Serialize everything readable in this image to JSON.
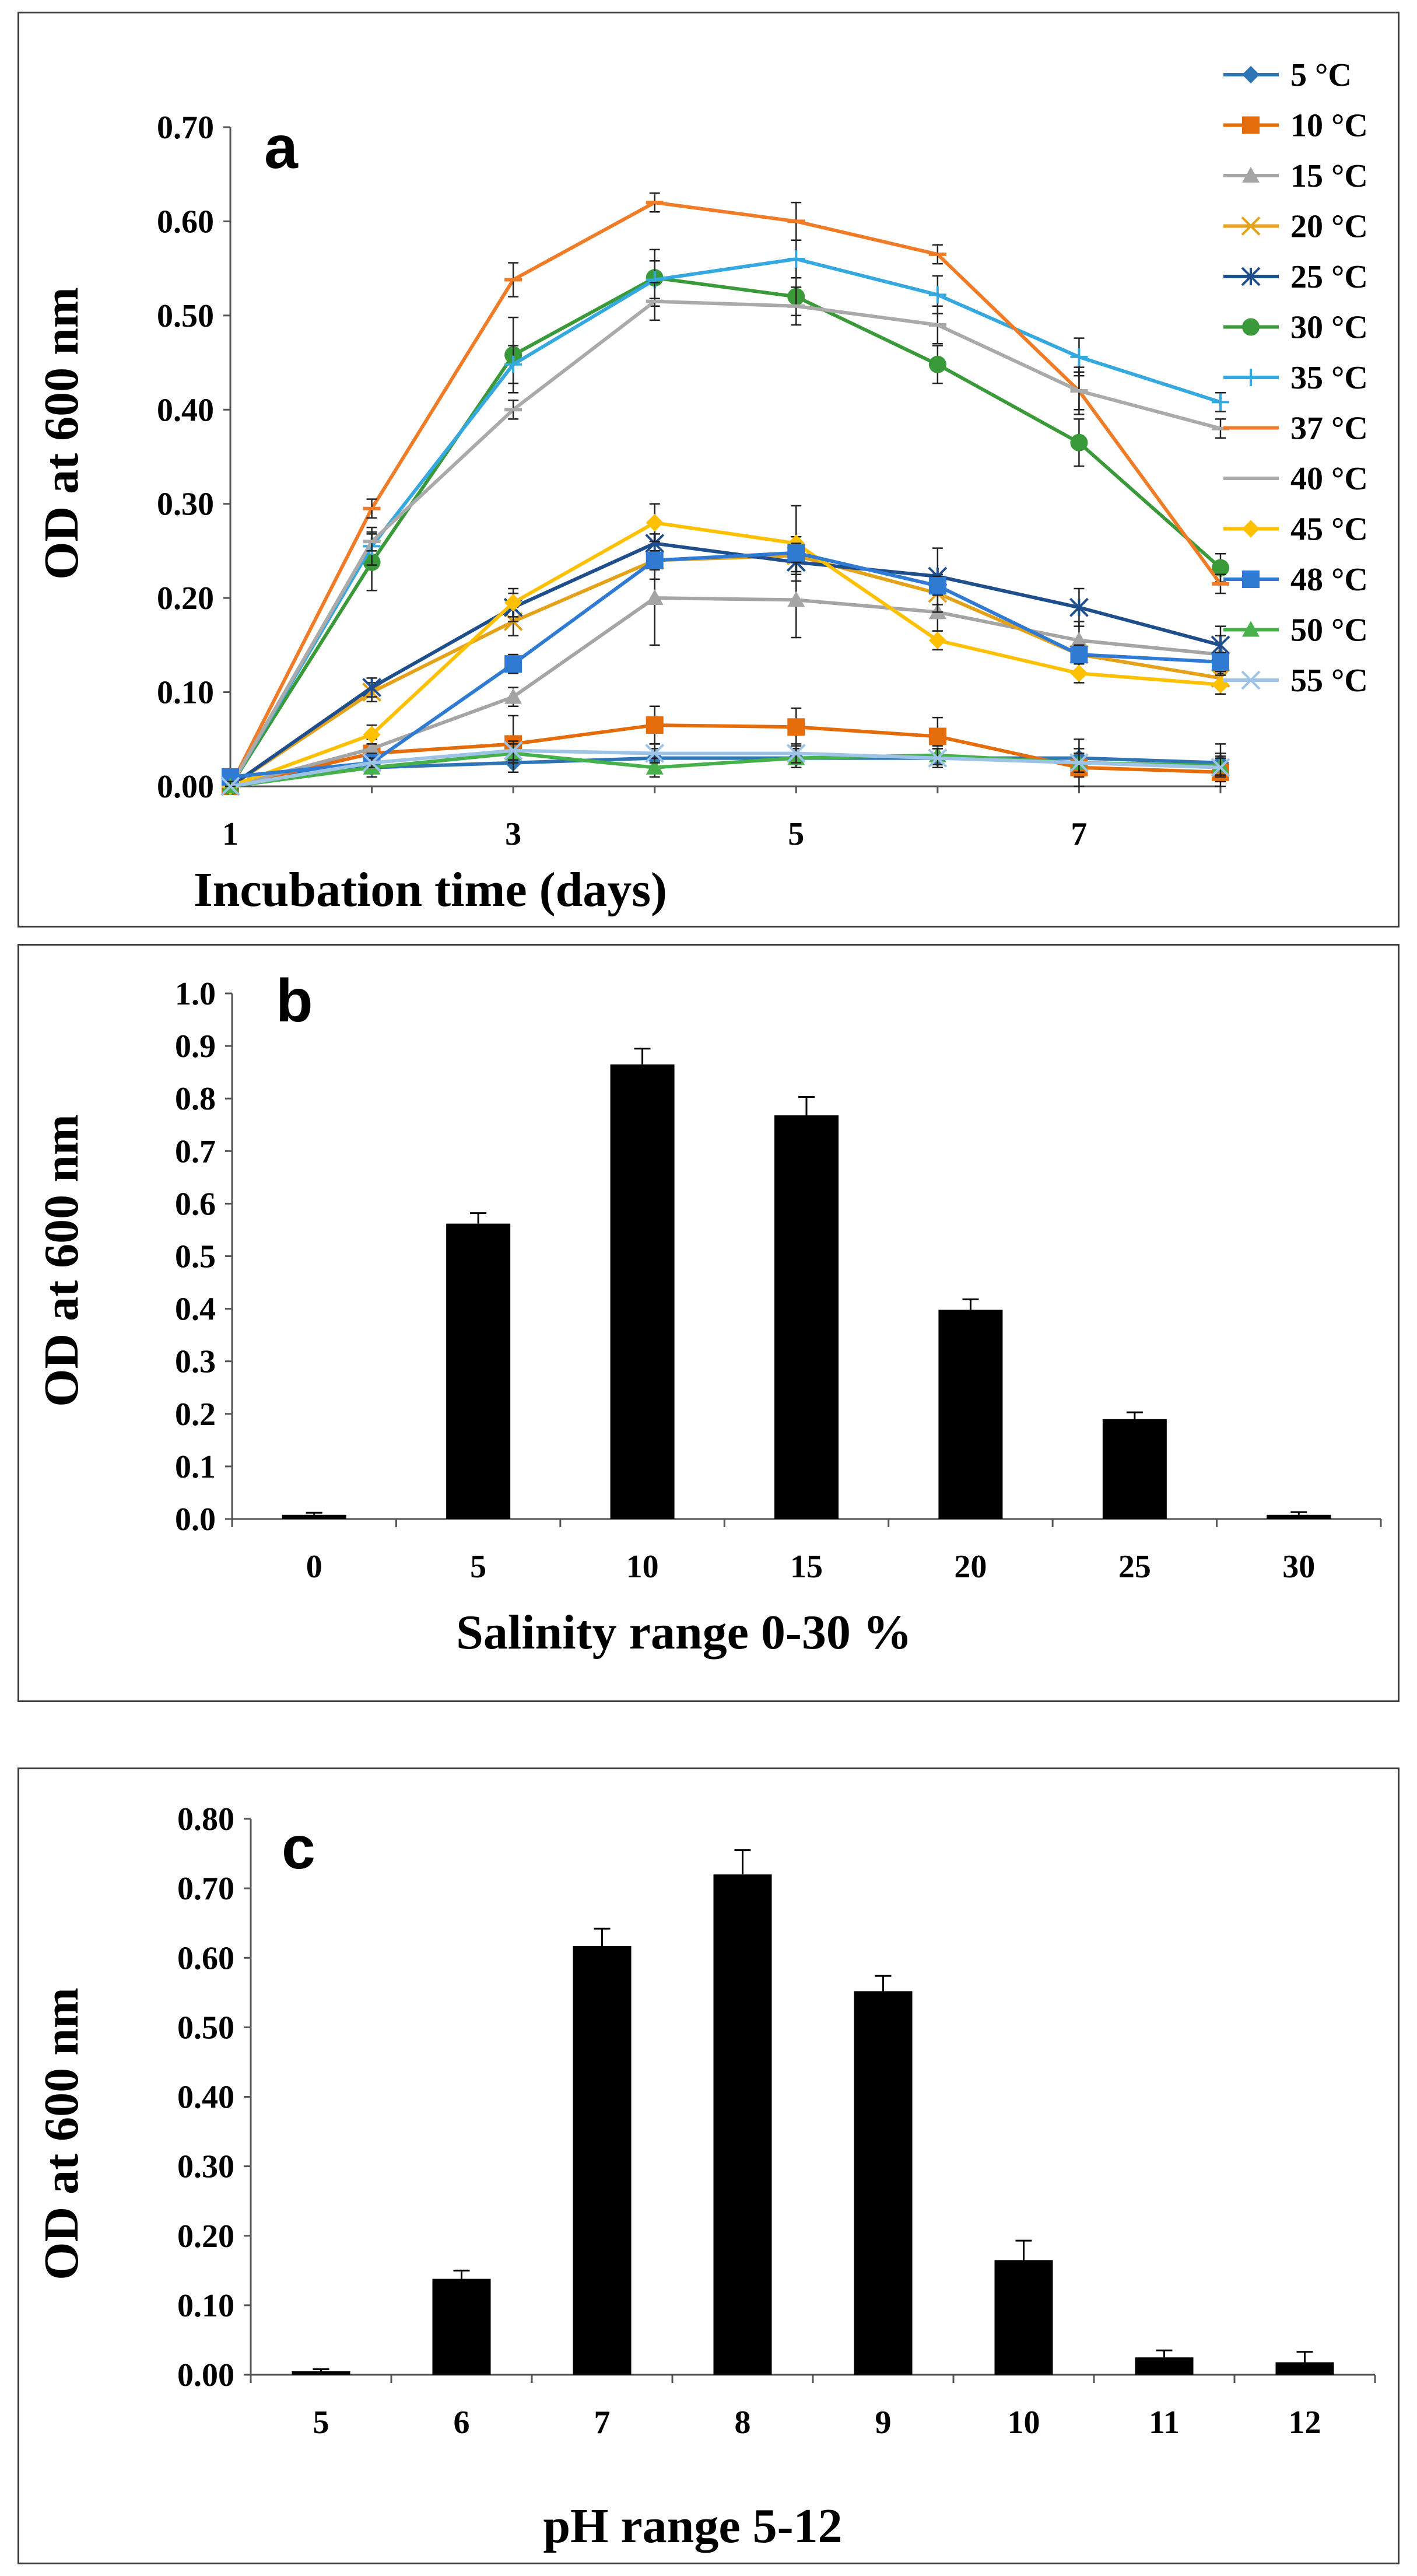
{
  "chart_data": [
    {
      "type": "line",
      "panel_label": "a",
      "xlabel": "Incubation time (days)",
      "ylabel": "OD at 600 nm",
      "xlim": [
        1,
        8
      ],
      "ylim": [
        0,
        0.7
      ],
      "xticks": [
        "1",
        "3",
        "5",
        "7"
      ],
      "yticks": [
        "0.00",
        "0.10",
        "0.20",
        "0.30",
        "0.40",
        "0.50",
        "0.60",
        "0.70"
      ],
      "legend_position": "right",
      "x": [
        1,
        2,
        3,
        4,
        5,
        6,
        7,
        8
      ],
      "series": [
        {
          "name": "5 °C",
          "color": "#2e75b6",
          "marker": "diamond",
          "values": [
            0.01,
            0.02,
            0.025,
            0.03,
            0.03,
            0.03,
            0.03,
            0.025
          ],
          "errors": [
            0.005,
            0.01,
            0.01,
            0.01,
            0.01,
            0.01,
            0.02,
            0.02
          ]
        },
        {
          "name": "10 °C",
          "color": "#e46c0a",
          "marker": "square",
          "values": [
            0.0,
            0.035,
            0.045,
            0.065,
            0.063,
            0.053,
            0.02,
            0.015
          ],
          "errors": [
            0.005,
            0.01,
            0.03,
            0.02,
            0.02,
            0.02,
            0.02,
            0.02
          ]
        },
        {
          "name": "15 °C",
          "color": "#a5a5a5",
          "marker": "triangle",
          "values": [
            0.0,
            0.04,
            0.095,
            0.2,
            0.198,
            0.185,
            0.155,
            0.14
          ],
          "errors": [
            0.005,
            0.01,
            0.01,
            0.05,
            0.04,
            0.02,
            0.02,
            0.02
          ]
        },
        {
          "name": "20 °C",
          "color": "#e3a21a",
          "marker": "x",
          "values": [
            0.0,
            0.1,
            0.175,
            0.24,
            0.245,
            0.205,
            0.14,
            0.115
          ],
          "errors": [
            0.005,
            0.01,
            0.015,
            0.02,
            0.02,
            0.02,
            0.01,
            0.01
          ]
        },
        {
          "name": "25 °C",
          "color": "#1f4e8c",
          "marker": "star",
          "values": [
            0.0,
            0.105,
            0.19,
            0.258,
            0.238,
            0.223,
            0.19,
            0.15
          ],
          "errors": [
            0.005,
            0.01,
            0.015,
            0.01,
            0.01,
            0.03,
            0.02,
            0.02
          ]
        },
        {
          "name": "30 °C",
          "color": "#3a9a3a",
          "marker": "circle",
          "values": [
            0.0,
            0.238,
            0.458,
            0.54,
            0.52,
            0.448,
            0.365,
            0.232
          ],
          "errors": [
            0.005,
            0.03,
            0.04,
            0.03,
            0.02,
            0.02,
            0.025,
            0.015
          ]
        },
        {
          "name": "35 °C",
          "color": "#35a8e0",
          "marker": "plus",
          "values": [
            0.0,
            0.255,
            0.448,
            0.538,
            0.56,
            0.522,
            0.456,
            0.408
          ],
          "errors": [
            0.005,
            0.02,
            0.02,
            0.02,
            0.02,
            0.02,
            0.02,
            0.01
          ]
        },
        {
          "name": "37 °C",
          "color": "#f07c28",
          "marker": "dash",
          "values": [
            0.0,
            0.295,
            0.538,
            0.62,
            0.6,
            0.565,
            0.42,
            0.215
          ],
          "errors": [
            0.005,
            0.01,
            0.018,
            0.01,
            0.02,
            0.01,
            0.025,
            0.01
          ]
        },
        {
          "name": "40 °C",
          "color": "#aaaaaa",
          "marker": "dash",
          "values": [
            0.0,
            0.26,
            0.4,
            0.515,
            0.51,
            0.49,
            0.42,
            0.38
          ],
          "errors": [
            0.005,
            0.01,
            0.01,
            0.02,
            0.02,
            0.02,
            0.02,
            0.01
          ]
        },
        {
          "name": "45 °C",
          "color": "#ffc000",
          "marker": "diamond",
          "values": [
            0.0,
            0.055,
            0.195,
            0.28,
            0.258,
            0.155,
            0.12,
            0.108
          ],
          "errors": [
            0.005,
            0.01,
            0.015,
            0.02,
            0.04,
            0.01,
            0.01,
            0.01
          ]
        },
        {
          "name": "48 °C",
          "color": "#2f7ad3",
          "marker": "square",
          "values": [
            0.01,
            0.025,
            0.13,
            0.24,
            0.248,
            0.213,
            0.14,
            0.132
          ],
          "errors": [
            0.005,
            0.01,
            0.01,
            0.01,
            0.01,
            0.01,
            0.01,
            0.01
          ]
        },
        {
          "name": "50 °C",
          "color": "#46b04a",
          "marker": "triangle",
          "values": [
            0.0,
            0.02,
            0.035,
            0.02,
            0.03,
            0.033,
            0.025,
            0.022
          ],
          "errors": [
            0.005,
            0.005,
            0.01,
            0.01,
            0.01,
            0.01,
            0.01,
            0.01
          ]
        },
        {
          "name": "55 °C",
          "color": "#9dc3e6",
          "marker": "x",
          "values": [
            0.0,
            0.025,
            0.038,
            0.035,
            0.035,
            0.03,
            0.025,
            0.02
          ],
          "errors": [
            0.005,
            0.005,
            0.01,
            0.01,
            0.01,
            0.01,
            0.01,
            0.01
          ]
        }
      ]
    },
    {
      "type": "bar",
      "panel_label": "b",
      "xlabel": "Salinity range 0-30 %",
      "ylabel": "OD  at 600 nm",
      "ylim": [
        0,
        1.0
      ],
      "yticks": [
        "0.0",
        "0.1",
        "0.2",
        "0.3",
        "0.4",
        "0.5",
        "0.6",
        "0.7",
        "0.8",
        "0.9",
        "1.0"
      ],
      "categories": [
        "0",
        "5",
        "10",
        "15",
        "20",
        "25",
        "30"
      ],
      "values": [
        0.008,
        0.562,
        0.865,
        0.768,
        0.398,
        0.19,
        0.008
      ],
      "errors": [
        0.004,
        0.02,
        0.03,
        0.035,
        0.02,
        0.013,
        0.005
      ],
      "bar_color": "#000000"
    },
    {
      "type": "bar",
      "panel_label": "c",
      "xlabel": "pH range 5-12",
      "ylabel": "OD  at 600 nm",
      "ylim": [
        0,
        0.8
      ],
      "yticks": [
        "0.00",
        "0.10",
        "0.20",
        "0.30",
        "0.40",
        "0.50",
        "0.60",
        "0.70",
        "0.80"
      ],
      "categories": [
        "5",
        "6",
        "7",
        "8",
        "9",
        "10",
        "11",
        "12"
      ],
      "values": [
        0.005,
        0.138,
        0.617,
        0.72,
        0.552,
        0.165,
        0.025,
        0.018
      ],
      "errors": [
        0.003,
        0.012,
        0.025,
        0.035,
        0.022,
        0.028,
        0.01,
        0.015
      ],
      "bar_color": "#000000"
    }
  ]
}
